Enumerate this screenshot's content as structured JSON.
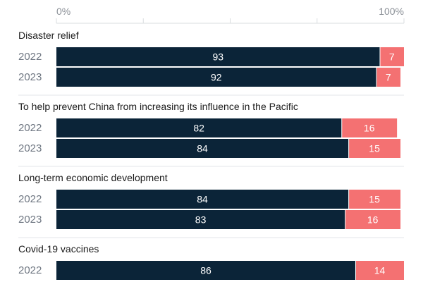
{
  "chart_data": {
    "type": "bar",
    "orientation": "horizontal",
    "stacked": true,
    "axis": {
      "ticks": [
        "0%",
        "100%"
      ],
      "xlim": [
        0,
        100
      ],
      "grid": true
    },
    "colors": {
      "primary": "#0b2438",
      "secondary": "#f47172"
    },
    "groups": [
      {
        "title": "Disaster relief",
        "rows": [
          {
            "year": "2022",
            "values": [
              93,
              7
            ]
          },
          {
            "year": "2023",
            "values": [
              92,
              7
            ]
          }
        ]
      },
      {
        "title": "To help prevent China from increasing its influence in the Pacific",
        "rows": [
          {
            "year": "2022",
            "values": [
              82,
              16
            ]
          },
          {
            "year": "2023",
            "values": [
              84,
              15
            ]
          }
        ]
      },
      {
        "title": "Long-term economic development",
        "rows": [
          {
            "year": "2022",
            "values": [
              84,
              15
            ]
          },
          {
            "year": "2023",
            "values": [
              83,
              16
            ]
          }
        ]
      },
      {
        "title": "Covid-19 vaccines",
        "rows": [
          {
            "year": "2022",
            "values": [
              86,
              14
            ]
          }
        ]
      }
    ]
  }
}
